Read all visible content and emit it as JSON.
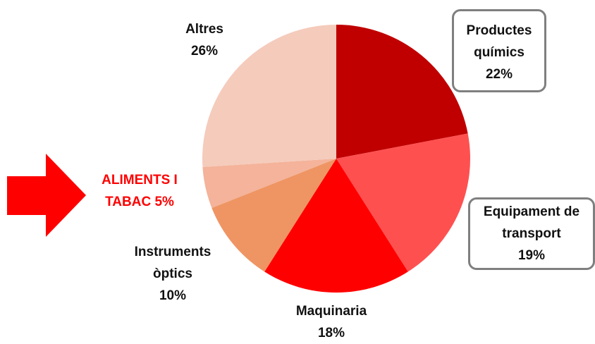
{
  "chart_data": {
    "type": "pie",
    "categories": [
      "Productes químics",
      "Equipament de transport",
      "Maquinaria",
      "Instruments òptics",
      "ALIMENTS I TABAC",
      "Altres"
    ],
    "values": [
      22,
      19,
      18,
      10,
      5,
      26
    ],
    "value_labels": [
      "22%",
      "19%",
      "18%",
      "10%",
      "5%",
      "26%"
    ],
    "colors": [
      "#c00000",
      "#ff5050",
      "#ff0000",
      "#ef9563",
      "#f4b39a",
      "#f5cbbc"
    ],
    "start_angle": 90,
    "direction": "clockwise"
  }
}
